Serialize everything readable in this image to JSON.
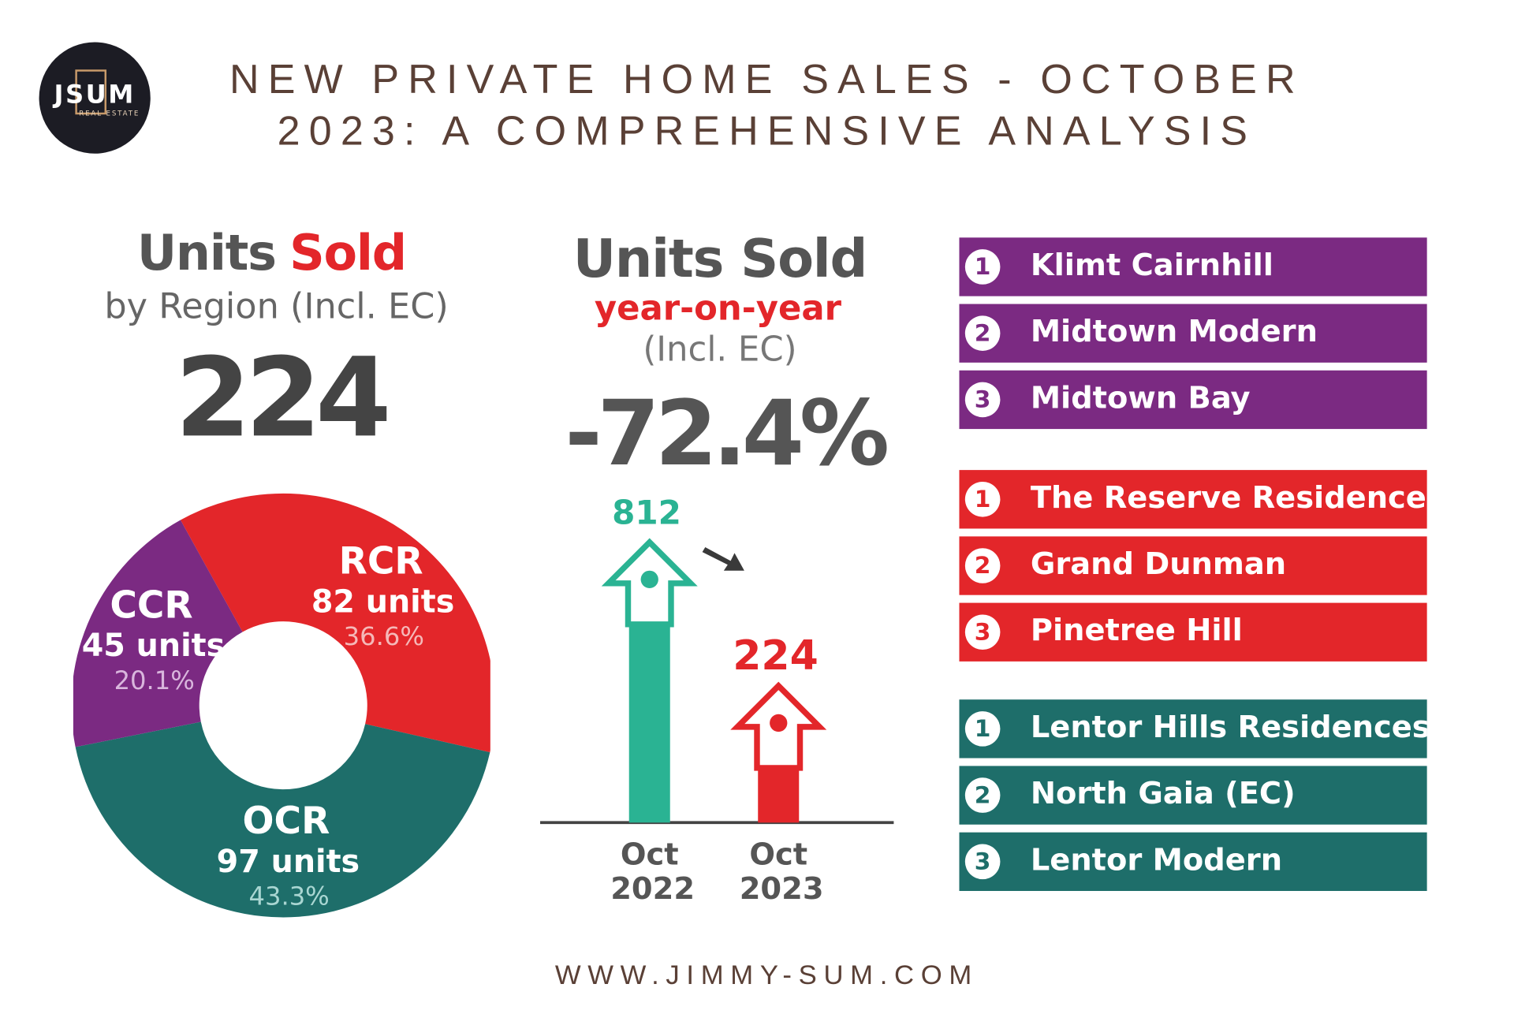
{
  "logo": {
    "mark": "JSUM",
    "tagline": "REAL ESTATE"
  },
  "header": {
    "title": "NEW PRIVATE HOME SALES - OCTOBER 2023: A COMPREHENSIVE ANALYSIS"
  },
  "region": {
    "title_first": "Units",
    "title_second": "Sold",
    "subtitle": "by Region (Incl. EC)",
    "total": 224,
    "chart": {
      "type": "donut",
      "categories": [
        "RCR",
        "OCR",
        "CCR"
      ],
      "values": [
        82,
        97,
        45
      ],
      "value_labels": [
        "82 units",
        "97 units",
        "45 units"
      ],
      "shares": [
        36.6,
        43.3,
        20.1
      ],
      "share_labels": [
        "36.6%",
        "43.3%",
        "20.1%"
      ],
      "colors": [
        "#e3262a",
        "#1e6e6a",
        "#7b2a82"
      ]
    }
  },
  "yoy": {
    "title": "Units Sold",
    "subtitle": "year-on-year",
    "note": "(Incl. EC)",
    "change": -72.4,
    "change_label": "-72.4%",
    "chart": {
      "type": "bar",
      "categories": [
        "Oct 2022",
        "Oct 2023"
      ],
      "values": [
        812,
        224
      ],
      "colors": [
        "#2ab393",
        "#e3262a"
      ]
    }
  },
  "rankings": [
    {
      "color": "#7b2a82",
      "items": [
        {
          "rank": 1,
          "name": "Klimt Cairnhill"
        },
        {
          "rank": 2,
          "name": "Midtown Modern"
        },
        {
          "rank": 3,
          "name": "Midtown Bay"
        }
      ]
    },
    {
      "color": "#e3262a",
      "items": [
        {
          "rank": 1,
          "name": "The Reserve Residences"
        },
        {
          "rank": 2,
          "name": "Grand Dunman"
        },
        {
          "rank": 3,
          "name": "Pinetree Hill"
        }
      ]
    },
    {
      "color": "#1e6e6a",
      "items": [
        {
          "rank": 1,
          "name": "Lentor Hills Residences"
        },
        {
          "rank": 2,
          "name": "North Gaia (EC)"
        },
        {
          "rank": 3,
          "name": "Lentor Modern"
        }
      ]
    }
  ],
  "footer": {
    "url": "WWW.JIMMY-SUM.COM"
  }
}
